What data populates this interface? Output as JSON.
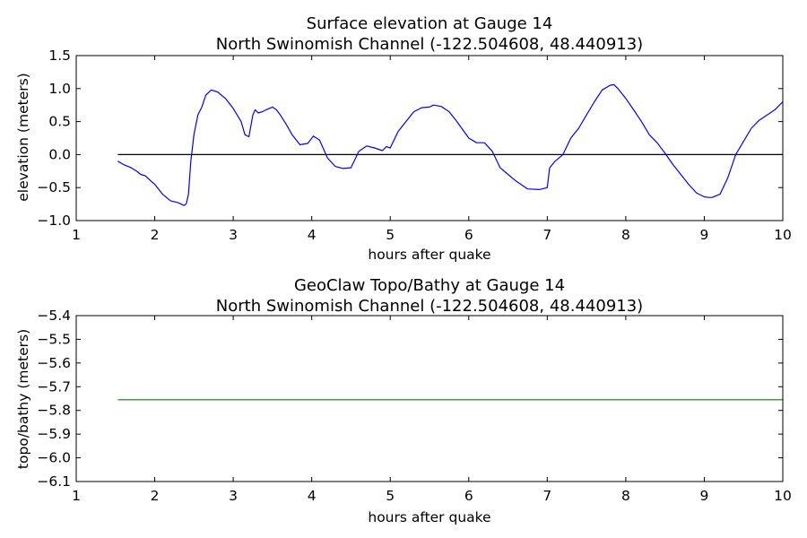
{
  "chart_data": [
    {
      "type": "line",
      "title_line1": "Surface elevation at Gauge 14",
      "title_line2": "North Swinomish Channel  (-122.504608, 48.440913)",
      "xlabel": "hours after quake",
      "ylabel": "elevation (meters)",
      "xlim": [
        1,
        10
      ],
      "ylim": [
        -1.0,
        1.5
      ],
      "x_ticks": [
        "1",
        "2",
        "3",
        "4",
        "5",
        "6",
        "7",
        "8",
        "9",
        "10"
      ],
      "y_ticks": [
        "−1.0",
        "−0.5",
        "0.0",
        "0.5",
        "1.0",
        "1.5"
      ],
      "grid": false,
      "reference_line": {
        "y": 0.0,
        "color": "#000000"
      },
      "series": [
        {
          "color": "#0000ff",
          "x": [
            1.53,
            1.6,
            1.7,
            1.78,
            1.82,
            1.88,
            1.95,
            2.0,
            2.1,
            2.2,
            2.3,
            2.37,
            2.4,
            2.43,
            2.46,
            2.5,
            2.55,
            2.6,
            2.65,
            2.72,
            2.8,
            2.9,
            3.0,
            3.1,
            3.15,
            3.2,
            3.25,
            3.28,
            3.32,
            3.37,
            3.42,
            3.5,
            3.55,
            3.6,
            3.68,
            3.75,
            3.85,
            3.95,
            4.02,
            4.1,
            4.2,
            4.3,
            4.4,
            4.5,
            4.6,
            4.7,
            4.8,
            4.9,
            4.95,
            5.0,
            5.1,
            5.2,
            5.3,
            5.4,
            5.5,
            5.55,
            5.65,
            5.75,
            5.85,
            6.0,
            6.1,
            6.2,
            6.3,
            6.4,
            6.5,
            6.6,
            6.75,
            6.9,
            7.0,
            7.03,
            7.1,
            7.2,
            7.3,
            7.4,
            7.5,
            7.6,
            7.7,
            7.8,
            7.85,
            7.9,
            8.0,
            8.1,
            8.2,
            8.3,
            8.4,
            8.5,
            8.6,
            8.7,
            8.8,
            8.9,
            9.0,
            9.05,
            9.1,
            9.2,
            9.3,
            9.4,
            9.5,
            9.6,
            9.7,
            9.8,
            9.9,
            10.0
          ],
          "y": [
            -0.1,
            -0.15,
            -0.2,
            -0.26,
            -0.3,
            -0.32,
            -0.4,
            -0.45,
            -0.6,
            -0.7,
            -0.73,
            -0.77,
            -0.75,
            -0.6,
            -0.1,
            0.3,
            0.6,
            0.72,
            0.9,
            0.98,
            0.95,
            0.85,
            0.7,
            0.5,
            0.3,
            0.27,
            0.6,
            0.68,
            0.63,
            0.65,
            0.68,
            0.72,
            0.68,
            0.6,
            0.45,
            0.3,
            0.15,
            0.17,
            0.28,
            0.22,
            -0.05,
            -0.18,
            -0.21,
            -0.2,
            0.05,
            0.13,
            0.1,
            0.06,
            0.12,
            0.1,
            0.35,
            0.5,
            0.65,
            0.71,
            0.72,
            0.75,
            0.73,
            0.65,
            0.5,
            0.25,
            0.18,
            0.18,
            0.05,
            -0.2,
            -0.3,
            -0.4,
            -0.52,
            -0.53,
            -0.5,
            -0.2,
            -0.1,
            0.0,
            0.25,
            0.4,
            0.6,
            0.8,
            0.98,
            1.05,
            1.06,
            1.0,
            0.85,
            0.68,
            0.5,
            0.3,
            0.18,
            0.02,
            -0.15,
            -0.3,
            -0.45,
            -0.58,
            -0.64,
            -0.65,
            -0.65,
            -0.6,
            -0.35,
            0.0,
            0.2,
            0.4,
            0.52,
            0.6,
            0.68,
            0.8
          ]
        }
      ]
    },
    {
      "type": "line",
      "title_line1": "GeoClaw Topo/Bathy at Gauge 14",
      "title_line2": "North Swinomish Channel  (-122.504608, 48.440913)",
      "xlabel": "hours after quake",
      "ylabel": "topo/bathy (meters)",
      "xlim": [
        1,
        10
      ],
      "ylim": [
        -6.1,
        -5.4
      ],
      "x_ticks": [
        "1",
        "2",
        "3",
        "4",
        "5",
        "6",
        "7",
        "8",
        "9",
        "10"
      ],
      "y_ticks": [
        "−6.1",
        "−6.0",
        "−5.9",
        "−5.8",
        "−5.7",
        "−5.6",
        "−5.5",
        "−5.4"
      ],
      "grid": false,
      "series": [
        {
          "color": "#008000",
          "x": [
            1.53,
            10.0
          ],
          "y": [
            -5.755,
            -5.755
          ]
        }
      ]
    }
  ]
}
